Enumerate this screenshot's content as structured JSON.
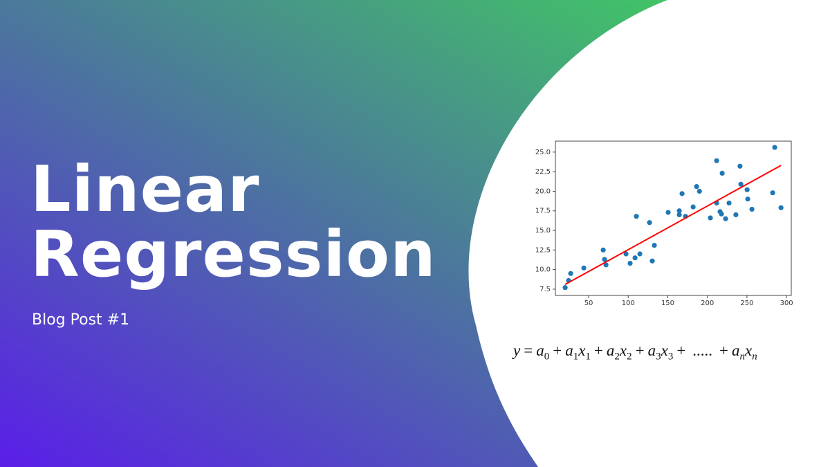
{
  "banner": {
    "title_line1": "Linear",
    "title_line2": "Regression",
    "subtitle": "Blog Post #1",
    "equation": [
      {
        "t": "y"
      },
      {
        "t": "="
      },
      {
        "t": "a",
        "sub": "0"
      },
      {
        "t": "+"
      },
      {
        "t": "a",
        "sub": "1"
      },
      {
        "t": "x",
        "sub": "1"
      },
      {
        "t": "+"
      },
      {
        "t": "a",
        "sub": "2"
      },
      {
        "t": "x",
        "sub": "2"
      },
      {
        "t": "+"
      },
      {
        "t": "a",
        "sub": "3"
      },
      {
        "t": "x",
        "sub": "3"
      },
      {
        "t": "+"
      },
      {
        "t": "....."
      },
      {
        "t": "+"
      },
      {
        "t": "a",
        "sub": "n"
      },
      {
        "t": "x",
        "sub": "n"
      }
    ]
  },
  "chart_data": {
    "type": "scatter",
    "color": "#1f77b4",
    "x": [
      20.3,
      24.6,
      27.3,
      43.9,
      68.4,
      70.1,
      71.9,
      97.2,
      102.4,
      108.6,
      110.3,
      114.7,
      126.9,
      130.4,
      133,
      150.5,
      164.5,
      164.5,
      168,
      172.4,
      182,
      186.4,
      190,
      203.8,
      211.7,
      211.7,
      216,
      217.8,
      218.7,
      223,
      227.4,
      236,
      241.2,
      242.3,
      250.2,
      251,
      256.3,
      282.5,
      285.1,
      293
    ],
    "values": [
      7.7,
      8.6,
      9.5,
      10.2,
      12.5,
      11.3,
      10.6,
      12.0,
      10.8,
      11.5,
      16.8,
      12.0,
      16.0,
      11.1,
      13.1,
      17.3,
      17.5,
      17.0,
      19.7,
      16.8,
      18.0,
      20.6,
      20.0,
      16.6,
      23.9,
      18.5,
      17.4,
      17.1,
      22.3,
      16.5,
      18.5,
      17.0,
      23.2,
      20.9,
      20.2,
      19.0,
      17.7,
      19.8,
      25.6,
      17.9
    ],
    "fit": {
      "x": [
        20.3,
        293
      ],
      "values": [
        8.1,
        23.3
      ],
      "color": "#ff0000"
    },
    "xlim": [
      8,
      306
    ],
    "ylim": [
      6.7,
      26.4
    ],
    "xticks": [
      50,
      100,
      150,
      200,
      250,
      300
    ],
    "yticks": [
      7.5,
      {
        "value": 10,
        "label": "10.0"
      },
      12.5,
      {
        "value": 15,
        "label": "15.0"
      },
      17.5,
      {
        "value": 20,
        "label": "20.0"
      },
      22.5,
      {
        "value": 25,
        "label": "25.0"
      }
    ]
  }
}
